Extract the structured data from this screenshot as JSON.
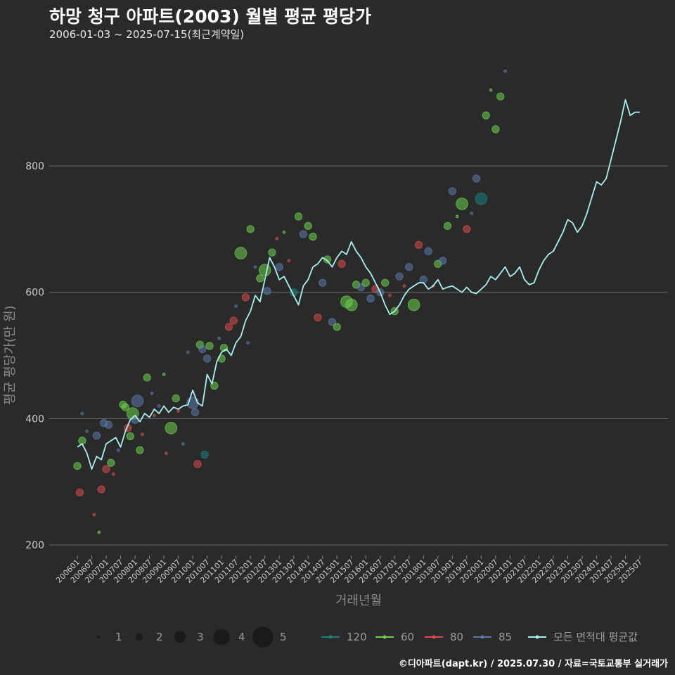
{
  "header": {
    "title": "하망 청구 아파트(2003) 월별 평균 평당가",
    "subtitle": "2006-01-03 ~ 2025-07-15(최근계약일)"
  },
  "caption": "©디아파트(dapt.kr) / 2025.07.30 / 자료=국토교통부 실거래가",
  "chart_data": {
    "type": "scatter",
    "xlabel": "거래년월",
    "ylabel": "평균 평당가(만 원)",
    "ylim": [
      190,
      960
    ],
    "yticks": [
      200,
      400,
      600,
      800
    ],
    "grid": true,
    "legend_position": "bottom",
    "x_tick_labels": [
      "200601",
      "200607",
      "200701",
      "200707",
      "200801",
      "200807",
      "200901",
      "200907",
      "201001",
      "201007",
      "201101",
      "201107",
      "201201",
      "201207",
      "201301",
      "201307",
      "201401",
      "201407",
      "201501",
      "201507",
      "201601",
      "201607",
      "201701",
      "201707",
      "201801",
      "201807",
      "201901",
      "201907",
      "202001",
      "202007",
      "202101",
      "202107",
      "202201",
      "202207",
      "202301",
      "202307",
      "202401",
      "202407",
      "202501",
      "202507"
    ],
    "size_legend": {
      "values": [
        1,
        2,
        3,
        4,
        5
      ]
    },
    "colors": {
      "120": "#1a7f80",
      "60": "#6ccf4d",
      "80": "#d94a4a",
      "85": "#5b79a8",
      "avg": "#a8f0ee"
    },
    "series_legend": [
      {
        "key": "120",
        "label": "120"
      },
      {
        "key": "60",
        "label": "60"
      },
      {
        "key": "80",
        "label": "80"
      },
      {
        "key": "85",
        "label": "85"
      },
      {
        "key": "avg",
        "label": "모든 면적대 평균값"
      }
    ],
    "avg_series": {
      "name": "모든 면적대 평균값",
      "points": [
        [
          "200601",
          355
        ],
        [
          "200603",
          360
        ],
        [
          "200605",
          345
        ],
        [
          "200607",
          320
        ],
        [
          "200609",
          340
        ],
        [
          "200611",
          335
        ],
        [
          "200701",
          360
        ],
        [
          "200703",
          365
        ],
        [
          "200705",
          370
        ],
        [
          "200707",
          355
        ],
        [
          "200709",
          380
        ],
        [
          "200711",
          398
        ],
        [
          "200801",
          405
        ],
        [
          "200803",
          395
        ],
        [
          "200805",
          408
        ],
        [
          "200807",
          402
        ],
        [
          "200809",
          415
        ],
        [
          "200811",
          408
        ],
        [
          "200901",
          420
        ],
        [
          "200903",
          410
        ],
        [
          "200905",
          418
        ],
        [
          "200907",
          415
        ],
        [
          "200909",
          420
        ],
        [
          "200911",
          422
        ],
        [
          "201001",
          445
        ],
        [
          "201003",
          425
        ],
        [
          "201005",
          420
        ],
        [
          "201007",
          470
        ],
        [
          "201009",
          455
        ],
        [
          "201011",
          490
        ],
        [
          "201101",
          505
        ],
        [
          "201103",
          510
        ],
        [
          "201105",
          500
        ],
        [
          "201107",
          520
        ],
        [
          "201109",
          530
        ],
        [
          "201111",
          555
        ],
        [
          "201201",
          570
        ],
        [
          "201203",
          595
        ],
        [
          "201205",
          585
        ],
        [
          "201207",
          620
        ],
        [
          "201209",
          655
        ],
        [
          "201211",
          640
        ],
        [
          "201301",
          620
        ],
        [
          "201303",
          625
        ],
        [
          "201305",
          610
        ],
        [
          "201307",
          595
        ],
        [
          "201309",
          580
        ],
        [
          "201311",
          610
        ],
        [
          "201401",
          620
        ],
        [
          "201403",
          640
        ],
        [
          "201405",
          645
        ],
        [
          "201407",
          655
        ],
        [
          "201409",
          650
        ],
        [
          "201411",
          640
        ],
        [
          "201501",
          655
        ],
        [
          "201503",
          665
        ],
        [
          "201505",
          660
        ],
        [
          "201507",
          680
        ],
        [
          "201509",
          665
        ],
        [
          "201511",
          655
        ],
        [
          "201601",
          640
        ],
        [
          "201603",
          630
        ],
        [
          "201605",
          615
        ],
        [
          "201607",
          600
        ],
        [
          "201609",
          580
        ],
        [
          "201611",
          565
        ],
        [
          "201701",
          570
        ],
        [
          "201703",
          580
        ],
        [
          "201705",
          595
        ],
        [
          "201707",
          605
        ],
        [
          "201709",
          610
        ],
        [
          "201711",
          615
        ],
        [
          "201801",
          615
        ],
        [
          "201803",
          605
        ],
        [
          "201805",
          610
        ],
        [
          "201807",
          620
        ],
        [
          "201809",
          605
        ],
        [
          "201811",
          608
        ],
        [
          "201901",
          610
        ],
        [
          "201903",
          605
        ],
        [
          "201905",
          600
        ],
        [
          "201907",
          608
        ],
        [
          "201909",
          600
        ],
        [
          "201911",
          598
        ],
        [
          "202001",
          605
        ],
        [
          "202003",
          612
        ],
        [
          "202005",
          625
        ],
        [
          "202007",
          620
        ],
        [
          "202009",
          630
        ],
        [
          "202011",
          640
        ],
        [
          "202101",
          625
        ],
        [
          "202103",
          630
        ],
        [
          "202105",
          640
        ],
        [
          "202107",
          620
        ],
        [
          "202109",
          612
        ],
        [
          "202111",
          615
        ],
        [
          "202201",
          635
        ],
        [
          "202203",
          650
        ],
        [
          "202205",
          660
        ],
        [
          "202207",
          665
        ],
        [
          "202209",
          680
        ],
        [
          "202211",
          695
        ],
        [
          "202301",
          715
        ],
        [
          "202303",
          710
        ],
        [
          "202305",
          695
        ],
        [
          "202307",
          705
        ],
        [
          "202309",
          725
        ],
        [
          "202311",
          750
        ],
        [
          "202401",
          775
        ],
        [
          "202403",
          770
        ],
        [
          "202405",
          780
        ],
        [
          "202407",
          810
        ],
        [
          "202409",
          840
        ],
        [
          "202411",
          870
        ],
        [
          "202501",
          905
        ],
        [
          "202503",
          880
        ],
        [
          "202505",
          885
        ],
        [
          "202507",
          885
        ]
      ]
    },
    "points": [
      {
        "x": "200601",
        "y": 325,
        "area": "60",
        "n": 2
      },
      {
        "x": "200602",
        "y": 283,
        "area": "80",
        "n": 2
      },
      {
        "x": "200603",
        "y": 365,
        "area": "60",
        "n": 2
      },
      {
        "x": "200603",
        "y": 408,
        "area": "85",
        "n": 1
      },
      {
        "x": "200605",
        "y": 380,
        "area": "85",
        "n": 1
      },
      {
        "x": "200608",
        "y": 248,
        "area": "80",
        "n": 1
      },
      {
        "x": "200609",
        "y": 373,
        "area": "85",
        "n": 2
      },
      {
        "x": "200610",
        "y": 220,
        "area": "60",
        "n": 1
      },
      {
        "x": "200611",
        "y": 288,
        "area": "80",
        "n": 2
      },
      {
        "x": "200612",
        "y": 393,
        "area": "85",
        "n": 2
      },
      {
        "x": "200701",
        "y": 320,
        "area": "80",
        "n": 2
      },
      {
        "x": "200702",
        "y": 390,
        "area": "85",
        "n": 2
      },
      {
        "x": "200703",
        "y": 330,
        "area": "60",
        "n": 2
      },
      {
        "x": "200704",
        "y": 312,
        "area": "80",
        "n": 1
      },
      {
        "x": "200706",
        "y": 350,
        "area": "85",
        "n": 1
      },
      {
        "x": "200708",
        "y": 422,
        "area": "60",
        "n": 2
      },
      {
        "x": "200709",
        "y": 418,
        "area": "60",
        "n": 2
      },
      {
        "x": "200710",
        "y": 385,
        "area": "80",
        "n": 2
      },
      {
        "x": "200711",
        "y": 372,
        "area": "60",
        "n": 2
      },
      {
        "x": "200712",
        "y": 408,
        "area": "60",
        "n": 3
      },
      {
        "x": "200801",
        "y": 398,
        "area": "85",
        "n": 2
      },
      {
        "x": "200802",
        "y": 428,
        "area": "85",
        "n": 3
      },
      {
        "x": "200803",
        "y": 350,
        "area": "60",
        "n": 2
      },
      {
        "x": "200804",
        "y": 375,
        "area": "80",
        "n": 1
      },
      {
        "x": "200806",
        "y": 465,
        "area": "60",
        "n": 2
      },
      {
        "x": "200808",
        "y": 440,
        "area": "85",
        "n": 1
      },
      {
        "x": "200809",
        "y": 405,
        "area": "80",
        "n": 1
      },
      {
        "x": "200811",
        "y": 420,
        "area": "85",
        "n": 1
      },
      {
        "x": "200901",
        "y": 470,
        "area": "60",
        "n": 1
      },
      {
        "x": "200902",
        "y": 345,
        "area": "80",
        "n": 1
      },
      {
        "x": "200904",
        "y": 385,
        "area": "60",
        "n": 3
      },
      {
        "x": "200906",
        "y": 432,
        "area": "60",
        "n": 2
      },
      {
        "x": "200907",
        "y": 412,
        "area": "80",
        "n": 1
      },
      {
        "x": "200909",
        "y": 360,
        "area": "85",
        "n": 1
      },
      {
        "x": "200911",
        "y": 505,
        "area": "85",
        "n": 1
      },
      {
        "x": "201001",
        "y": 425,
        "area": "85",
        "n": 3
      },
      {
        "x": "201002",
        "y": 410,
        "area": "85",
        "n": 2
      },
      {
        "x": "201003",
        "y": 328,
        "area": "80",
        "n": 2
      },
      {
        "x": "201004",
        "y": 517,
        "area": "60",
        "n": 2
      },
      {
        "x": "201005",
        "y": 510,
        "area": "85",
        "n": 2
      },
      {
        "x": "201006",
        "y": 343,
        "area": "120",
        "n": 2
      },
      {
        "x": "201007",
        "y": 495,
        "area": "85",
        "n": 2
      },
      {
        "x": "201008",
        "y": 515,
        "area": "60",
        "n": 2
      },
      {
        "x": "201010",
        "y": 452,
        "area": "60",
        "n": 2
      },
      {
        "x": "201012",
        "y": 527,
        "area": "85",
        "n": 1
      },
      {
        "x": "201101",
        "y": 495,
        "area": "60",
        "n": 2
      },
      {
        "x": "201102",
        "y": 512,
        "area": "60",
        "n": 2
      },
      {
        "x": "201104",
        "y": 545,
        "area": "80",
        "n": 2
      },
      {
        "x": "201106",
        "y": 555,
        "area": "80",
        "n": 2
      },
      {
        "x": "201107",
        "y": 578,
        "area": "85",
        "n": 1
      },
      {
        "x": "201109",
        "y": 662,
        "area": "60",
        "n": 3
      },
      {
        "x": "201111",
        "y": 592,
        "area": "80",
        "n": 2
      },
      {
        "x": "201112",
        "y": 520,
        "area": "85",
        "n": 1
      },
      {
        "x": "201201",
        "y": 700,
        "area": "60",
        "n": 2
      },
      {
        "x": "201203",
        "y": 640,
        "area": "85",
        "n": 1
      },
      {
        "x": "201205",
        "y": 622,
        "area": "60",
        "n": 2
      },
      {
        "x": "201207",
        "y": 635,
        "area": "60",
        "n": 3
      },
      {
        "x": "201208",
        "y": 602,
        "area": "85",
        "n": 2
      },
      {
        "x": "201210",
        "y": 663,
        "area": "60",
        "n": 2
      },
      {
        "x": "201212",
        "y": 685,
        "area": "80",
        "n": 1
      },
      {
        "x": "201301",
        "y": 640,
        "area": "85",
        "n": 2
      },
      {
        "x": "201303",
        "y": 695,
        "area": "60",
        "n": 1
      },
      {
        "x": "201305",
        "y": 650,
        "area": "80",
        "n": 1
      },
      {
        "x": "201307",
        "y": 600,
        "area": "120",
        "n": 2
      },
      {
        "x": "201309",
        "y": 720,
        "area": "60",
        "n": 2
      },
      {
        "x": "201311",
        "y": 692,
        "area": "85",
        "n": 2
      },
      {
        "x": "201401",
        "y": 705,
        "area": "60",
        "n": 2
      },
      {
        "x": "201403",
        "y": 688,
        "area": "60",
        "n": 2
      },
      {
        "x": "201405",
        "y": 560,
        "area": "80",
        "n": 2
      },
      {
        "x": "201407",
        "y": 615,
        "area": "85",
        "n": 2
      },
      {
        "x": "201409",
        "y": 652,
        "area": "60",
        "n": 2
      },
      {
        "x": "201411",
        "y": 553,
        "area": "85",
        "n": 2
      },
      {
        "x": "201501",
        "y": 545,
        "area": "60",
        "n": 2
      },
      {
        "x": "201503",
        "y": 645,
        "area": "80",
        "n": 2
      },
      {
        "x": "201505",
        "y": 585,
        "area": "60",
        "n": 3
      },
      {
        "x": "201507",
        "y": 580,
        "area": "60",
        "n": 3
      },
      {
        "x": "201509",
        "y": 612,
        "area": "60",
        "n": 2
      },
      {
        "x": "201511",
        "y": 608,
        "area": "85",
        "n": 2
      },
      {
        "x": "201601",
        "y": 615,
        "area": "60",
        "n": 2
      },
      {
        "x": "201603",
        "y": 590,
        "area": "85",
        "n": 2
      },
      {
        "x": "201605",
        "y": 605,
        "area": "80",
        "n": 2
      },
      {
        "x": "201607",
        "y": 600,
        "area": "85",
        "n": 2
      },
      {
        "x": "201609",
        "y": 615,
        "area": "60",
        "n": 2
      },
      {
        "x": "201611",
        "y": 595,
        "area": "80",
        "n": 1
      },
      {
        "x": "201701",
        "y": 570,
        "area": "60",
        "n": 2
      },
      {
        "x": "201703",
        "y": 625,
        "area": "85",
        "n": 2
      },
      {
        "x": "201705",
        "y": 610,
        "area": "80",
        "n": 1
      },
      {
        "x": "201707",
        "y": 640,
        "area": "85",
        "n": 2
      },
      {
        "x": "201709",
        "y": 580,
        "area": "60",
        "n": 3
      },
      {
        "x": "201711",
        "y": 675,
        "area": "80",
        "n": 2
      },
      {
        "x": "201801",
        "y": 620,
        "area": "85",
        "n": 2
      },
      {
        "x": "201803",
        "y": 665,
        "area": "85",
        "n": 2
      },
      {
        "x": "201805",
        "y": 610,
        "area": "80",
        "n": 1
      },
      {
        "x": "201807",
        "y": 645,
        "area": "60",
        "n": 2
      },
      {
        "x": "201809",
        "y": 650,
        "area": "85",
        "n": 2
      },
      {
        "x": "201811",
        "y": 705,
        "area": "60",
        "n": 2
      },
      {
        "x": "201901",
        "y": 760,
        "area": "85",
        "n": 2
      },
      {
        "x": "201903",
        "y": 720,
        "area": "60",
        "n": 1
      },
      {
        "x": "201905",
        "y": 740,
        "area": "60",
        "n": 3
      },
      {
        "x": "201907",
        "y": 700,
        "area": "80",
        "n": 2
      },
      {
        "x": "201909",
        "y": 725,
        "area": "85",
        "n": 1
      },
      {
        "x": "201911",
        "y": 780,
        "area": "85",
        "n": 2
      },
      {
        "x": "202001",
        "y": 748,
        "area": "120",
        "n": 3
      },
      {
        "x": "202003",
        "y": 880,
        "area": "60",
        "n": 2
      },
      {
        "x": "202005",
        "y": 920,
        "area": "60",
        "n": 1
      },
      {
        "x": "202007",
        "y": 858,
        "area": "60",
        "n": 2
      },
      {
        "x": "202009",
        "y": 910,
        "area": "60",
        "n": 2
      },
      {
        "x": "202011",
        "y": 950,
        "area": "85",
        "n": 1
      }
    ]
  }
}
